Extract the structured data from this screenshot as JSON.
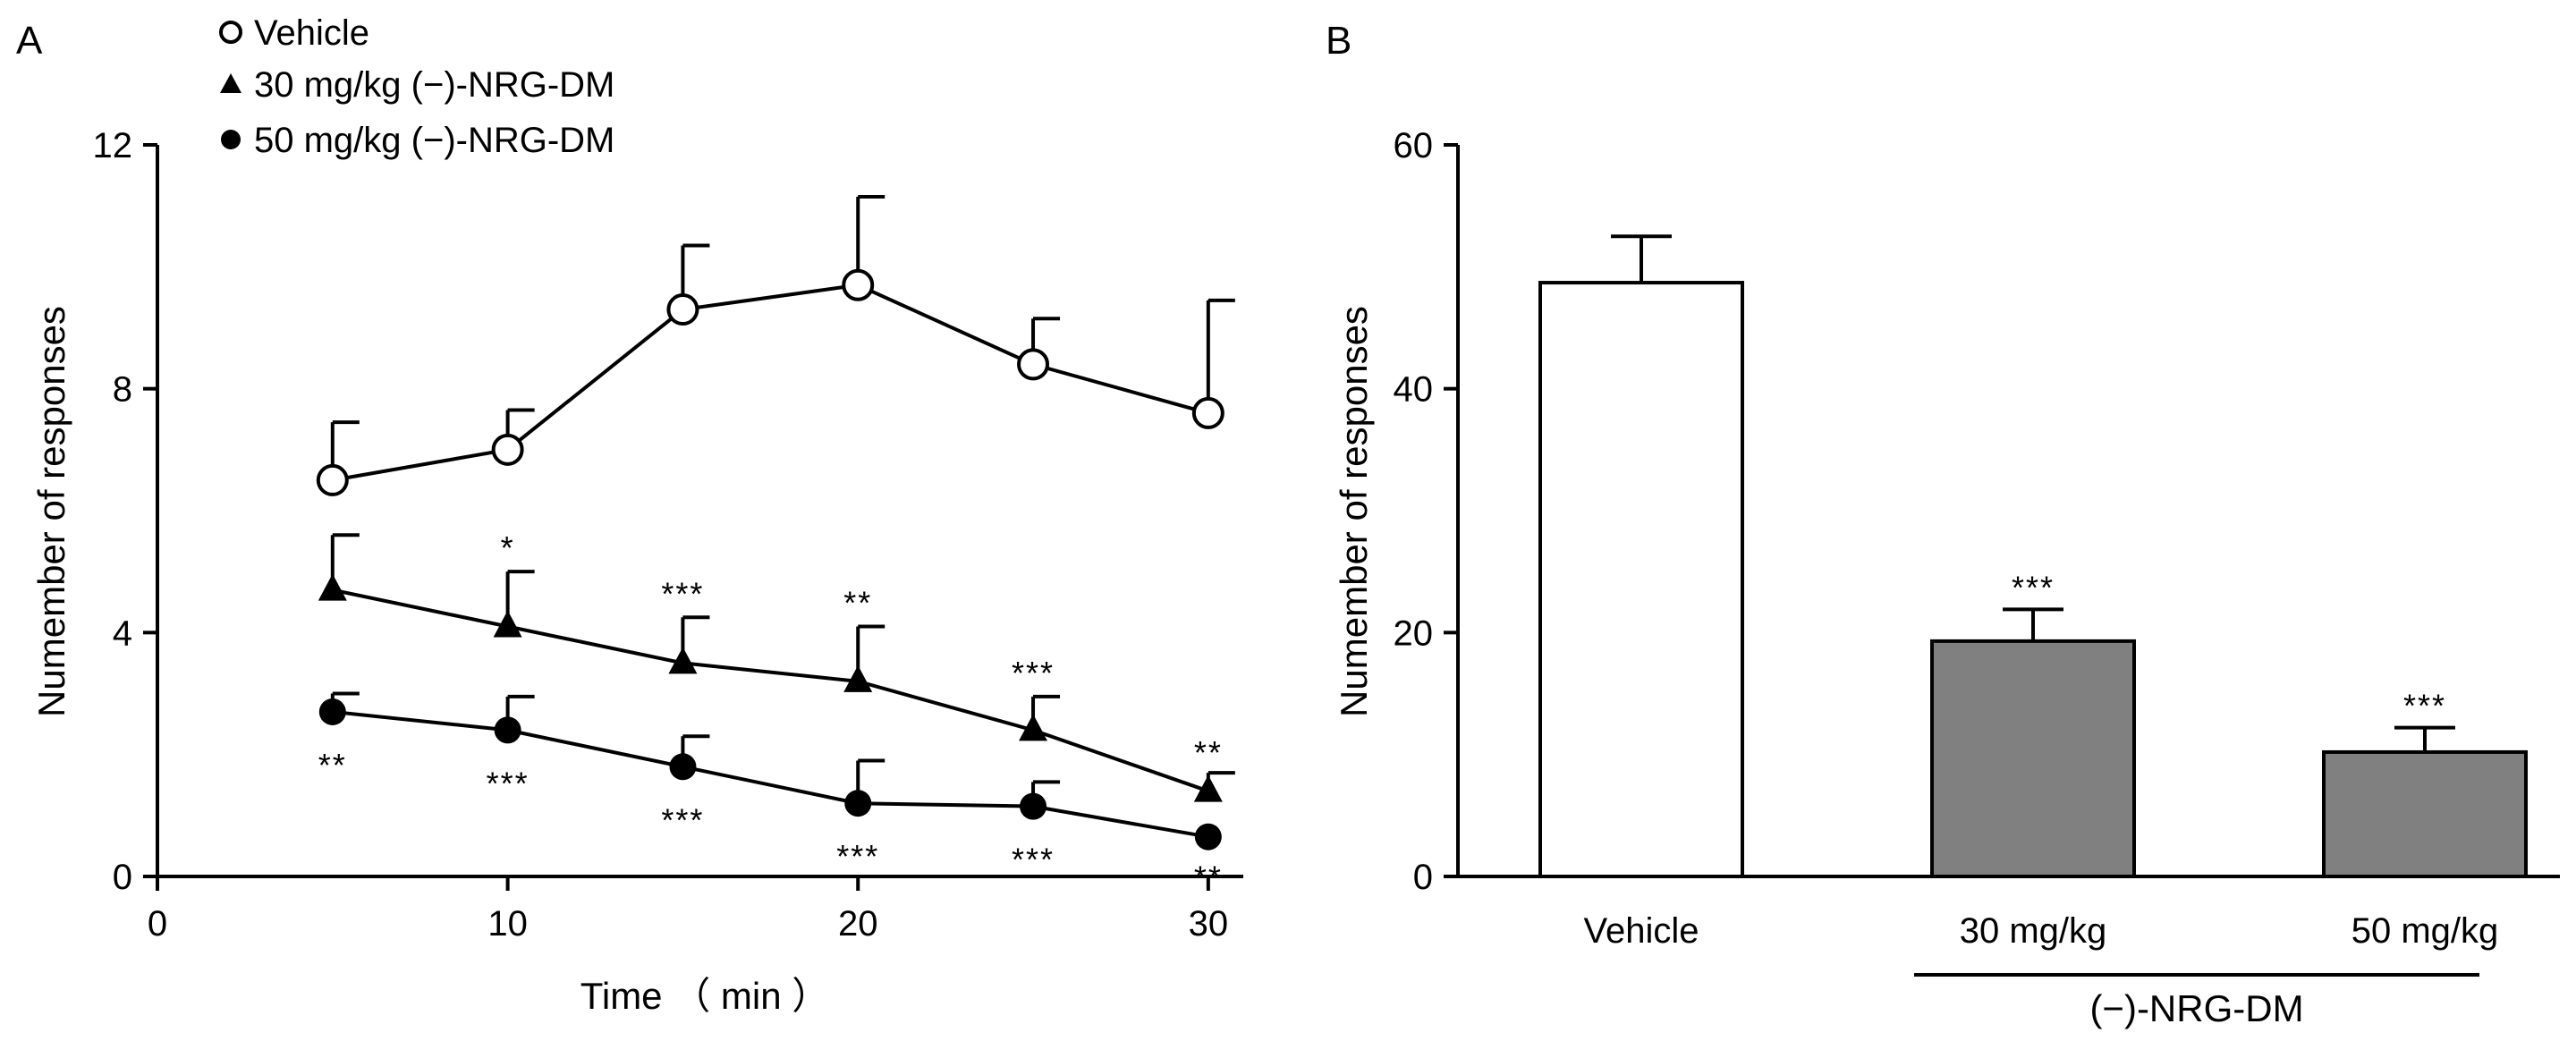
{
  "chart_data": [
    {
      "panel": "A",
      "type": "line",
      "xlabel": "Time （ min ）",
      "ylabel": "Numember of responses",
      "xlim": [
        0,
        31
      ],
      "ylim": [
        0,
        12
      ],
      "x_ticks": [
        "0",
        "10",
        "20",
        "30"
      ],
      "y_ticks": [
        "0",
        "4",
        "8",
        "12"
      ],
      "x": [
        5,
        10,
        15,
        20,
        25,
        30
      ],
      "series": [
        {
          "name": "Vehicle",
          "marker": "open-circle",
          "values": [
            6.5,
            7.0,
            9.3,
            9.7,
            8.4,
            7.6
          ],
          "error": [
            0.95,
            0.65,
            1.05,
            1.45,
            0.75,
            1.85
          ],
          "annotations": [
            "",
            "",
            "",
            "",
            "",
            ""
          ]
        },
        {
          "name": "30 mg/kg (−)-NRG-DM",
          "marker": "triangle",
          "values": [
            4.7,
            4.1,
            3.5,
            3.2,
            2.4,
            1.4
          ],
          "error": [
            0.9,
            0.9,
            0.75,
            0.9,
            0.55,
            0.3
          ],
          "annotations": [
            "",
            "*",
            "***",
            "**",
            "***",
            "**"
          ]
        },
        {
          "name": "50 mg/kg (−)-NRG-DM",
          "marker": "filled-circle",
          "values": [
            2.7,
            2.4,
            1.8,
            1.2,
            1.15,
            0.65
          ],
          "error": [
            0.3,
            0.55,
            0.5,
            0.7,
            0.4,
            0.0
          ],
          "annotations": [
            "**",
            "***",
            "***",
            "***",
            "***",
            "**"
          ]
        }
      ]
    },
    {
      "panel": "B",
      "type": "bar",
      "ylabel": "Numember of responses",
      "ylim": [
        0,
        60
      ],
      "y_ticks": [
        "0",
        "20",
        "40",
        "60"
      ],
      "categories": [
        "Vehicle",
        "30 mg/kg",
        "50 mg/kg"
      ],
      "values": [
        48.7,
        19.3,
        10.2
      ],
      "error": [
        3.8,
        2.6,
        2.0
      ],
      "colors": [
        "#ffffff",
        "#808080",
        "#808080"
      ],
      "annotations": [
        "",
        "***",
        "***"
      ],
      "group_label": "(−)-NRG-DM"
    }
  ]
}
